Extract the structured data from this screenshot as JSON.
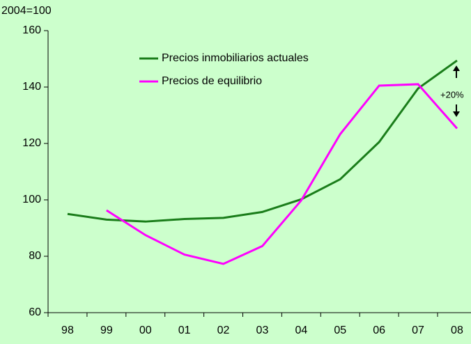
{
  "chart_data": {
    "type": "line",
    "axis_note": "2004=100",
    "annotation": "+20%",
    "categories": [
      "98",
      "99",
      "00",
      "01",
      "02",
      "03",
      "04",
      "05",
      "06",
      "07",
      "08"
    ],
    "series": [
      {
        "name": "Precios inmobiliarios actuales",
        "color": "#1a7d1a",
        "values": [
          95,
          93,
          92.3,
          93.2,
          93.6,
          95.7,
          100.2,
          107.3,
          120.5,
          139.5,
          149.4
        ]
      },
      {
        "name": "Precios de equilibrio",
        "color": "#ff00ff",
        "values": [
          null,
          96.3,
          87.5,
          80.6,
          77.3,
          83.6,
          99.8,
          123.3,
          140.5,
          141,
          125.3
        ]
      }
    ],
    "ylim": [
      60,
      160
    ],
    "yticks": [
      60,
      80,
      100,
      120,
      140,
      160
    ],
    "grid": false
  }
}
